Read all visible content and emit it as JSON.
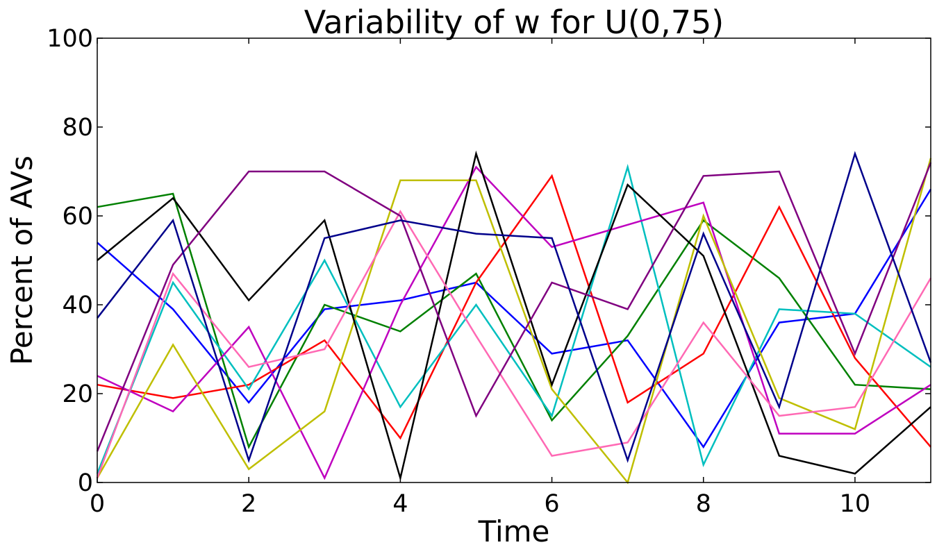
{
  "chart_data": {
    "type": "line",
    "title": "Variability of w for U(0,75)",
    "xlabel": "Time",
    "ylabel": "Percent of AVs",
    "xlim": [
      0,
      11
    ],
    "ylim": [
      0,
      100
    ],
    "xticks": [
      0,
      2,
      4,
      6,
      8,
      10
    ],
    "yticks": [
      0,
      20,
      40,
      60,
      80,
      100
    ],
    "grid": false,
    "legend": "none",
    "x": [
      0,
      1,
      2,
      3,
      4,
      5,
      6,
      7,
      8,
      9,
      10,
      11
    ],
    "series": [
      {
        "color": "#0000ff",
        "values": [
          54,
          39,
          18,
          39,
          41,
          45,
          29,
          32,
          8,
          36,
          38,
          66
        ]
      },
      {
        "color": "#008000",
        "values": [
          62,
          65,
          8,
          40,
          34,
          47,
          14,
          33,
          59,
          46,
          22,
          21
        ]
      },
      {
        "color": "#ff0000",
        "values": [
          22,
          19,
          22,
          32,
          10,
          45,
          69,
          18,
          29,
          62,
          28,
          8
        ]
      },
      {
        "color": "#00bfbf",
        "values": [
          2,
          45,
          21,
          50,
          17,
          40,
          15,
          71,
          4,
          39,
          38,
          26
        ]
      },
      {
        "color": "#bf00bf",
        "values": [
          24,
          16,
          35,
          1,
          40,
          71,
          53,
          58,
          63,
          11,
          11,
          22
        ]
      },
      {
        "color": "#bfbf00",
        "values": [
          1,
          31,
          3,
          16,
          68,
          68,
          21,
          0,
          60,
          19,
          12,
          73
        ]
      },
      {
        "color": "#000000",
        "values": [
          50,
          64,
          41,
          59,
          1,
          74,
          22,
          67,
          51,
          6,
          2,
          17
        ]
      },
      {
        "color": "#ff69b4",
        "values": [
          1,
          47,
          26,
          30,
          61,
          33,
          6,
          9,
          36,
          15,
          17,
          46
        ]
      },
      {
        "color": "#800080",
        "values": [
          7,
          49,
          70,
          70,
          60,
          15,
          45,
          39,
          69,
          70,
          29,
          72
        ]
      },
      {
        "color": "#00008b",
        "values": [
          37,
          59,
          5,
          55,
          59,
          56,
          55,
          5,
          56,
          17,
          74,
          27
        ]
      }
    ]
  }
}
